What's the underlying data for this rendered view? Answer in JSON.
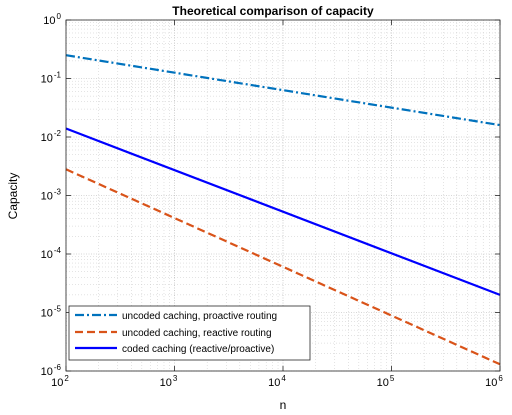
{
  "chart_data": {
    "type": "line",
    "title": "Theoretical comparison of capacity",
    "xlabel": "n",
    "ylabel": "Capacity",
    "xscale": "log",
    "yscale": "log",
    "xlim": [
      100,
      1000000
    ],
    "ylim": [
      1e-06,
      1
    ],
    "grid": true,
    "legend_position": "bottom-left",
    "xticks": [
      {
        "base": "10",
        "exp": "2",
        "value": 100
      },
      {
        "base": "10",
        "exp": "3",
        "value": 1000
      },
      {
        "base": "10",
        "exp": "4",
        "value": 10000
      },
      {
        "base": "10",
        "exp": "5",
        "value": 100000
      },
      {
        "base": "10",
        "exp": "6",
        "value": 1000000
      }
    ],
    "yticks": [
      {
        "base": "10",
        "exp": "0",
        "value": 1
      },
      {
        "base": "10",
        "exp": "-1",
        "value": 0.1
      },
      {
        "base": "10",
        "exp": "-2",
        "value": 0.01
      },
      {
        "base": "10",
        "exp": "-3",
        "value": 0.001
      },
      {
        "base": "10",
        "exp": "-4",
        "value": 0.0001
      },
      {
        "base": "10",
        "exp": "-5",
        "value": 1e-05
      },
      {
        "base": "10",
        "exp": "-6",
        "value": 1e-06
      }
    ],
    "series": [
      {
        "name": "uncoded caching, proactive routing",
        "color": "#0072bd",
        "dash": "dash-dot",
        "x": [
          100,
          1000000
        ],
        "y": [
          0.25,
          0.016
        ]
      },
      {
        "name": "uncoded caching, reactive routing",
        "color": "#d95319",
        "dash": "dashed",
        "x": [
          100,
          1000000
        ],
        "y": [
          0.0028,
          1.3e-06
        ]
      },
      {
        "name": "coded caching (reactive/proactive)",
        "color": "#0000ff",
        "dash": "solid",
        "x": [
          100,
          1000000
        ],
        "y": [
          0.014,
          2e-05
        ]
      }
    ]
  }
}
